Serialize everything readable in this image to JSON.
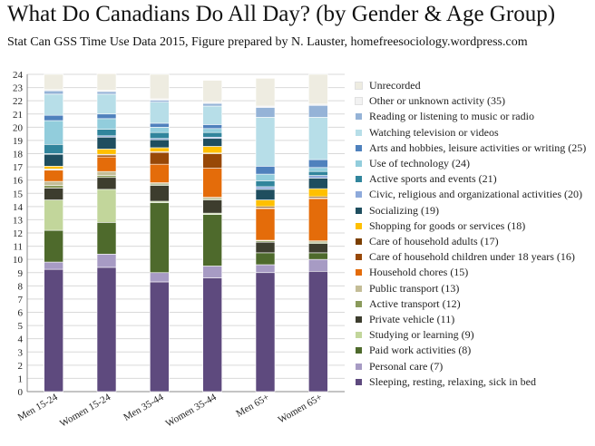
{
  "chart_data": {
    "type": "bar",
    "stacked": true,
    "title": "What Do Canadians Do All Day?  (by Gender & Age Group)",
    "subtitle": "Stat Can GSS Time Use Data 2015, Figure prepared by N. Lauster, homefreesociology.wordpress.com",
    "ylim": [
      0,
      24
    ],
    "yticks": [
      "0",
      "1",
      "2",
      "3",
      "4",
      "5",
      "6",
      "7",
      "8",
      "9",
      "10",
      "11",
      "12",
      "13",
      "14",
      "15",
      "16",
      "17",
      "18",
      "19",
      "20",
      "21",
      "22",
      "23",
      "24"
    ],
    "categories": [
      "Men 15-24",
      "Women 15-24",
      "Men 35-44",
      "Women 35-44",
      "Men 65+",
      "Women 65+"
    ],
    "series": [
      {
        "name": "Sleeping, resting, relaxing, sick in bed",
        "color": "#5e4a7e",
        "values": [
          9.25,
          9.4,
          8.3,
          8.6,
          9.0,
          9.1
        ]
      },
      {
        "name": "Personal care (7)",
        "color": "#a79bc4",
        "values": [
          0.55,
          1.0,
          0.7,
          0.9,
          0.6,
          0.9
        ]
      },
      {
        "name": "Paid work activities (8)",
        "color": "#4e6a2c",
        "values": [
          2.4,
          2.4,
          5.3,
          3.9,
          0.9,
          0.5
        ]
      },
      {
        "name": "Studying or learning (9)",
        "color": "#c2d69b",
        "values": [
          2.3,
          2.5,
          0.1,
          0.1,
          0.0,
          0.0
        ]
      },
      {
        "name": "Private vehicle (11)",
        "color": "#3d3d2e",
        "values": [
          0.9,
          0.9,
          1.2,
          1.0,
          0.8,
          0.7
        ]
      },
      {
        "name": "Active transport (12)",
        "color": "#8a9a5b",
        "values": [
          0.2,
          0.15,
          0.1,
          0.1,
          0.1,
          0.1
        ]
      },
      {
        "name": "Public transport (13)",
        "color": "#c4bd97",
        "values": [
          0.3,
          0.3,
          0.1,
          0.1,
          0.05,
          0.1
        ]
      },
      {
        "name": "Household chores (15)",
        "color": "#e46c0a",
        "values": [
          0.85,
          1.1,
          1.4,
          2.2,
          2.4,
          3.2
        ]
      },
      {
        "name": "Care of household children under 18 years (16)",
        "color": "#984807",
        "values": [
          0.05,
          0.15,
          0.9,
          1.1,
          0.05,
          0.05
        ]
      },
      {
        "name": "Care of household adults (17)",
        "color": "#7b3f00",
        "values": [
          0.05,
          0.05,
          0.05,
          0.05,
          0.1,
          0.1
        ]
      },
      {
        "name": "Shopping for goods or services (18)",
        "color": "#ffc000",
        "values": [
          0.2,
          0.4,
          0.3,
          0.5,
          0.5,
          0.6
        ]
      },
      {
        "name": "Socializing (19)",
        "color": "#1f4e5f",
        "values": [
          0.9,
          0.9,
          0.6,
          0.6,
          0.8,
          0.8
        ]
      },
      {
        "name": "Civic, religious and organizational activities (20)",
        "color": "#8eaadb",
        "values": [
          0.05,
          0.1,
          0.1,
          0.1,
          0.2,
          0.2
        ]
      },
      {
        "name": "Active sports and events (21)",
        "color": "#31859c",
        "values": [
          0.7,
          0.5,
          0.45,
          0.35,
          0.45,
          0.3
        ]
      },
      {
        "name": "Use of technology (24)",
        "color": "#92cddc",
        "values": [
          1.8,
          0.8,
          0.4,
          0.3,
          0.5,
          0.3
        ]
      },
      {
        "name": "Arts and hobbies, leisure activities or writing (25)",
        "color": "#4f81bd",
        "values": [
          0.4,
          0.35,
          0.3,
          0.3,
          0.6,
          0.6
        ]
      },
      {
        "name": "Watching television or videos",
        "color": "#b7dee8",
        "values": [
          1.6,
          1.5,
          1.6,
          1.4,
          3.7,
          3.2
        ]
      },
      {
        "name": "Reading or listening to music or radio",
        "color": "#95b3d7",
        "values": [
          0.25,
          0.2,
          0.15,
          0.2,
          0.75,
          0.9
        ]
      },
      {
        "name": "Other or unknown activity (35)",
        "color": "#f2f2f2",
        "values": [
          0.1,
          0.1,
          0.1,
          0.1,
          0.1,
          0.1
        ]
      },
      {
        "name": "Unrecorded",
        "color": "#eeece1",
        "values": [
          1.15,
          1.25,
          1.85,
          1.65,
          2.1,
          2.25
        ]
      }
    ]
  }
}
